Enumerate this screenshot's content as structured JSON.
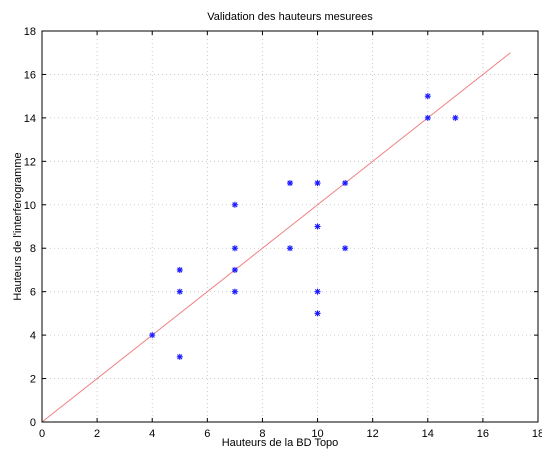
{
  "chart_data": {
    "type": "scatter",
    "title": "Validation des hauteurs mesurees",
    "xlabel": "Hauteurs de la BD Topo",
    "ylabel": "Hauteurs de l'interferogramme",
    "xlim": [
      0,
      18
    ],
    "ylim": [
      0,
      18
    ],
    "xticks": [
      "0",
      "2",
      "4",
      "6",
      "8",
      "10",
      "12",
      "14",
      "16",
      "18"
    ],
    "yticks": [
      "0",
      "2",
      "4",
      "6",
      "8",
      "10",
      "12",
      "14",
      "16",
      "18"
    ],
    "grid": true,
    "marker": "*",
    "series": [
      {
        "points": [
          [
            4,
            4
          ],
          [
            5,
            3
          ],
          [
            5,
            6
          ],
          [
            5,
            7
          ],
          [
            7,
            6
          ],
          [
            7,
            7
          ],
          [
            7,
            8
          ],
          [
            7,
            10
          ],
          [
            9,
            8
          ],
          [
            9,
            11
          ],
          [
            10,
            5
          ],
          [
            10,
            6
          ],
          [
            10,
            9
          ],
          [
            10,
            11
          ],
          [
            11,
            8
          ],
          [
            11,
            11
          ],
          [
            14,
            14
          ],
          [
            14,
            15
          ],
          [
            15,
            14
          ]
        ]
      }
    ],
    "reference_line": {
      "x": [
        0,
        17
      ],
      "y": [
        0,
        17
      ]
    },
    "colors": {
      "points": "#1a1aff",
      "line": "#f08080",
      "grid": "#bfbfbf",
      "axes": "#000000"
    }
  }
}
